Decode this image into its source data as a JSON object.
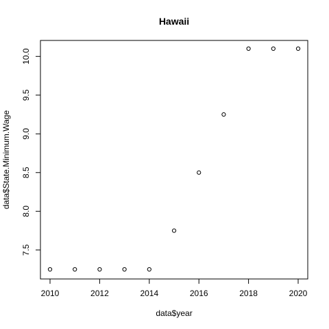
{
  "chart_data": {
    "type": "scatter",
    "title": "Hawaii",
    "xlabel": "data$year",
    "ylabel": "data$State.Minimum.Wage",
    "x": [
      2010,
      2011,
      2012,
      2013,
      2014,
      2015,
      2016,
      2017,
      2018,
      2019,
      2020
    ],
    "y": [
      7.25,
      7.25,
      7.25,
      7.25,
      7.25,
      7.75,
      8.5,
      9.25,
      10.1,
      10.1,
      10.1
    ],
    "xlim": [
      2010,
      2020
    ],
    "ylim": [
      7.25,
      10.1
    ],
    "xticks": [
      2010,
      2012,
      2014,
      2016,
      2018,
      2020
    ],
    "yticks": [
      "7.5",
      "8.0",
      "8.5",
      "9.0",
      "9.5",
      "10.0"
    ],
    "point_style": "open-circle",
    "grid": false,
    "legend": "none"
  }
}
